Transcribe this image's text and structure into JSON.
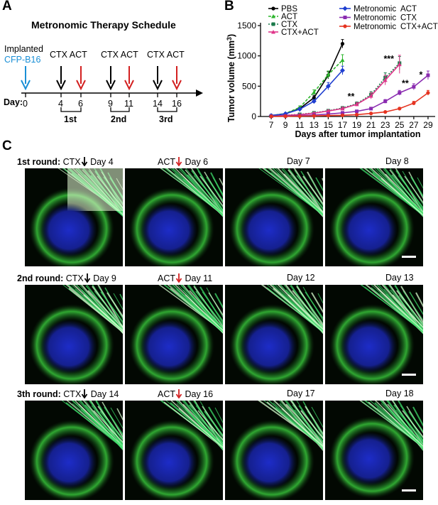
{
  "panels": {
    "a": "A",
    "b": "B",
    "c": "C"
  },
  "schedule": {
    "title": "Metronomic Therapy Schedule",
    "implanted_label": "Implanted",
    "implanted_cell": "CFP-B16",
    "day_label": "Day:",
    "treatments": [
      {
        "cx": "CTX",
        "act": "ACT"
      },
      {
        "cx": "CTX",
        "act": "ACT"
      },
      {
        "cx": "CTX",
        "act": "ACT"
      }
    ],
    "ticks": [
      "0",
      "4",
      "6",
      "9",
      "11",
      "14",
      "16"
    ],
    "rounds": [
      "1st",
      "2nd",
      "3rd"
    ],
    "colors": {
      "implant_arrow": "#1a8fd6",
      "ctx_arrow": "#000000",
      "act_arrow": "#d32020",
      "implant_text": "#1a8fd6"
    }
  },
  "chart_data": {
    "type": "line",
    "title": "",
    "xlabel": "Days after tumor implantation",
    "ylabel": "Tumor volume (mm³)",
    "ylabel_text": "Tumor volume (mm",
    "ylabel_sup": "3",
    "ylabel_close": ")",
    "xlim": [
      5.5,
      30
    ],
    "ylim": [
      0,
      1500
    ],
    "xticks": [
      7,
      9,
      11,
      13,
      15,
      17,
      19,
      21,
      23,
      25,
      27,
      29
    ],
    "yticks": [
      0,
      500,
      1000,
      1500
    ],
    "series": [
      {
        "name": "PBS",
        "color": "#000000",
        "dash": "",
        "marker": "circle",
        "x": [
          7,
          9,
          11,
          13,
          15,
          17
        ],
        "y": [
          15,
          45,
          130,
          310,
          680,
          1200
        ],
        "err": [
          5,
          10,
          20,
          40,
          60,
          70
        ]
      },
      {
        "name": "ACT",
        "color": "#2cb52c",
        "dash": "4,2",
        "marker": "triangle",
        "x": [
          7,
          9,
          11,
          13,
          15,
          17
        ],
        "y": [
          15,
          50,
          150,
          400,
          690,
          930
        ],
        "err": [
          5,
          10,
          25,
          40,
          60,
          90
        ]
      },
      {
        "name": "CTX",
        "color": "#1a7a4a",
        "dash": "2,2",
        "marker": "square",
        "x": [
          7,
          9,
          11,
          13,
          15,
          17,
          19,
          21,
          23,
          25
        ],
        "y": [
          10,
          20,
          35,
          60,
          95,
          140,
          210,
          360,
          640,
          880
        ],
        "err": [
          3,
          5,
          8,
          15,
          20,
          25,
          30,
          50,
          80,
          110
        ]
      },
      {
        "name": "CTX+ACT",
        "color": "#e0348a",
        "dash": "",
        "marker": "triangle",
        "x": [
          7,
          9,
          11,
          13,
          15,
          17,
          19,
          21,
          23,
          25
        ],
        "y": [
          10,
          18,
          30,
          55,
          90,
          130,
          200,
          340,
          600,
          860
        ],
        "err": [
          3,
          5,
          8,
          12,
          18,
          25,
          30,
          50,
          80,
          150
        ]
      },
      {
        "name": "Metronomic ACT",
        "color": "#1f3fd0",
        "dash": "",
        "marker": "diamond",
        "x": [
          7,
          9,
          11,
          13,
          15,
          17
        ],
        "y": [
          15,
          45,
          120,
          250,
          500,
          760
        ],
        "err": [
          5,
          10,
          20,
          30,
          60,
          70
        ]
      },
      {
        "name": "Metronomic CTX",
        "color": "#8a2bb0",
        "dash": "",
        "marker": "square",
        "x": [
          7,
          9,
          11,
          13,
          15,
          17,
          19,
          21,
          23,
          25,
          27,
          29
        ],
        "y": [
          5,
          10,
          15,
          25,
          40,
          60,
          85,
          130,
          250,
          390,
          490,
          680
        ],
        "err": [
          2,
          3,
          4,
          6,
          8,
          10,
          12,
          20,
          30,
          40,
          50,
          70
        ]
      },
      {
        "name": "Metronomic CTX+ACT",
        "color": "#e53320",
        "dash": "",
        "marker": "circle",
        "x": [
          7,
          9,
          11,
          13,
          15,
          17,
          19,
          21,
          23,
          25,
          27,
          29
        ],
        "y": [
          2,
          4,
          6,
          10,
          15,
          20,
          30,
          50,
          75,
          130,
          220,
          390
        ],
        "err": [
          1,
          1,
          2,
          2,
          3,
          4,
          5,
          8,
          12,
          20,
          30,
          40
        ]
      }
    ],
    "legend_left": [
      "PBS",
      "ACT",
      "CTX",
      "CTX+ACT"
    ],
    "legend_right": [
      {
        "a": "Metronomic",
        "b": "ACT"
      },
      {
        "a": "Metronomic",
        "b": "CTX"
      },
      {
        "a": "Metronomic",
        "b": "CTX+ACT"
      }
    ],
    "annotations": [
      {
        "text": "**",
        "x": 18.2,
        "y": 280
      },
      {
        "text": "***",
        "x": 23.5,
        "y": 900
      },
      {
        "text": "*",
        "x": 28.0,
        "y": 640
      },
      {
        "text": "**",
        "x": 25.8,
        "y": 500
      }
    ]
  },
  "microscopy": {
    "rows": [
      {
        "round": "1st round:",
        "first": "CTX",
        "first_day": "Day 4",
        "second": "ACT",
        "second_day": "Day 6",
        "third_day": "Day 7",
        "fourth_day": "Day 8"
      },
      {
        "round": "2nd round:",
        "first": "CTX",
        "first_day": "Day 9",
        "second": "ACT",
        "second_day": "Day 11",
        "third_day": "Day 12",
        "fourth_day": "Day 13"
      },
      {
        "round": "3th round:",
        "first": "CTX",
        "first_day": "Day 14",
        "second": "ACT",
        "second_day": "Day 16",
        "third_day": "Day 17",
        "fourth_day": "Day 18"
      }
    ]
  }
}
